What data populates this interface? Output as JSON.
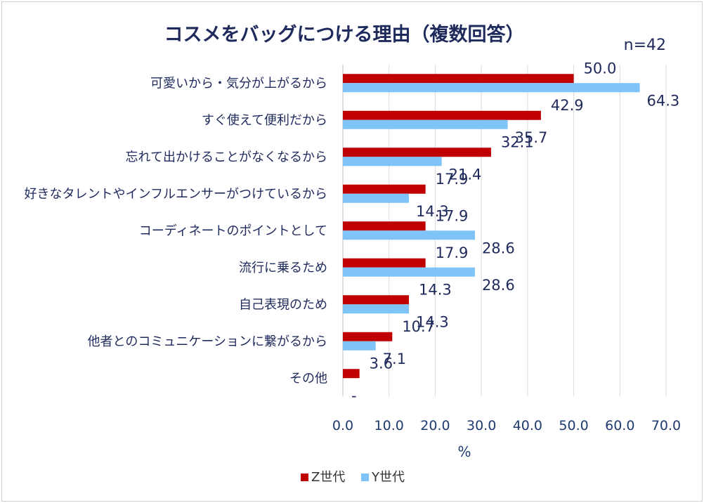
{
  "chart_data": {
    "type": "bar",
    "orientation": "horizontal",
    "title": "コスメをバッグにつける理由（複数回答）",
    "sample_size": "n=42",
    "xlabel": "%",
    "xlim": [
      0,
      70
    ],
    "x_ticks": [
      "0.0",
      "10.0",
      "20.0",
      "30.0",
      "40.0",
      "50.0",
      "60.0",
      "70.0"
    ],
    "grid": "vertical",
    "legend_position": "bottom",
    "categories": [
      "可愛いから・気分が上がるから",
      "すぐ使えて便利だから",
      "忘れて出かけることがなくなるから",
      "好きなタレントやインフルエンサーがつけているから",
      "コーディネートのポイントとして",
      "流行に乗るため",
      "自己表現のため",
      "他者とのコミュニケーションに繋がるから",
      "その他"
    ],
    "series": [
      {
        "name": "Z世代",
        "color": "#c00000",
        "values": [
          50.0,
          42.9,
          32.1,
          17.9,
          17.9,
          17.9,
          14.3,
          10.7,
          3.6
        ],
        "labels": [
          "50.0",
          "42.9",
          "32.1",
          "17.9",
          "17.9",
          "17.9",
          "14.3",
          "10.7",
          "3.6"
        ]
      },
      {
        "name": "Y世代",
        "color": "#7ec4f8",
        "values": [
          64.3,
          35.7,
          21.4,
          14.3,
          28.6,
          28.6,
          14.3,
          7.1,
          0
        ],
        "labels": [
          "64.3",
          "35.7",
          "21.4",
          "14.3",
          "28.6",
          "28.6",
          "14.3",
          "7.1",
          "-"
        ]
      }
    ]
  },
  "colors": {
    "grid": "#d9d9d9",
    "axis": "#bfbfbf"
  }
}
